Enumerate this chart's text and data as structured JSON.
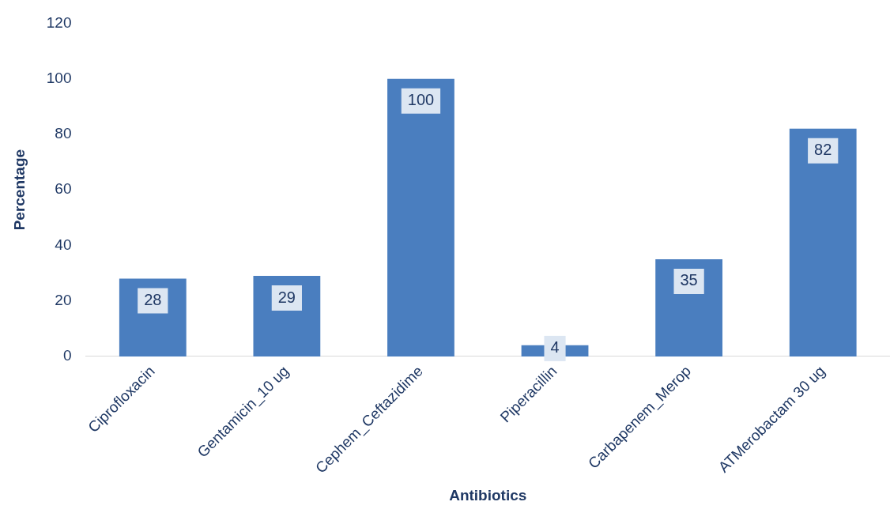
{
  "chart_data": {
    "type": "bar",
    "xlabel": "Antibiotics",
    "ylabel": "Percentage",
    "categories": [
      "Ciprofloxacin",
      "Gentamicin_10 ug",
      "Cephem_Ceftazidime",
      "Piperacillin",
      "Carbapenem_Merop",
      "ATMerobactam 30 ug"
    ],
    "values": [
      28,
      29,
      100,
      4,
      35,
      82
    ],
    "color": "#4a7ebf",
    "ylim": [
      0,
      120
    ],
    "yticks": [
      0,
      20,
      40,
      60,
      80,
      100,
      120
    ],
    "grid": false,
    "legend": false,
    "data_labels": true
  }
}
